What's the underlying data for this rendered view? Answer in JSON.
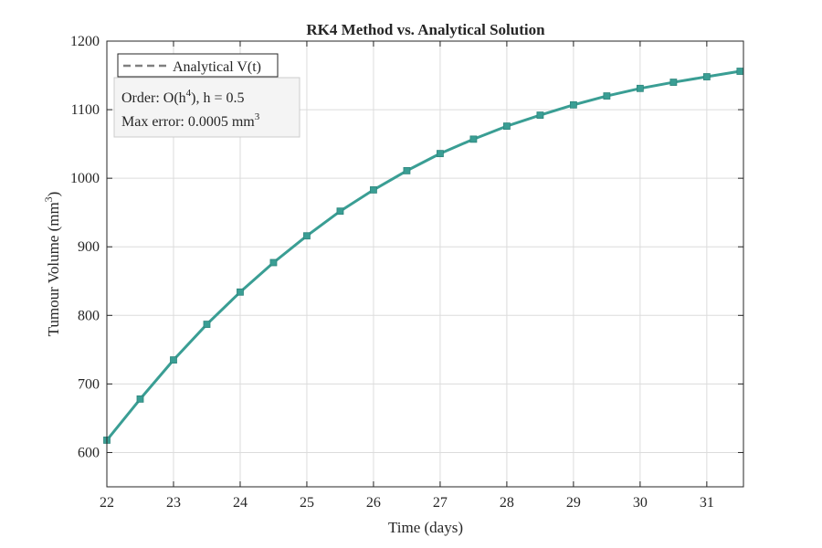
{
  "chart_data": {
    "type": "line",
    "title": "RK4 Method vs. Analytical Solution",
    "xlabel": "Time (days)",
    "ylabel": {
      "main": "Tumour Volume (mm",
      "sup": "3",
      "end": ")"
    },
    "xlim": [
      22,
      31.55
    ],
    "ylim": [
      550,
      1200
    ],
    "xticks": [
      22,
      23,
      24,
      25,
      26,
      27,
      28,
      29,
      30,
      31
    ],
    "yticks": [
      600,
      700,
      800,
      900,
      1000,
      1100,
      1200
    ],
    "grid": true,
    "legend": {
      "placement": "top-left",
      "entries": [
        "Analytical V(t)"
      ]
    },
    "annotation": {
      "order_prefix": "Order: O(h",
      "order_sup": "4",
      "order_suffix": "),  h = 0.5",
      "error_prefix": "Max error: 0.0005 mm",
      "error_sup": "3"
    },
    "colors": {
      "line": "#3a9e94",
      "marker": "#3a9e94",
      "grid": "#dcdcdc",
      "axis": "#262626",
      "analytical": "#808080"
    },
    "series": [
      {
        "name": "Analytical V(t)",
        "style": "dashed",
        "x": [
          22,
          22.5,
          23,
          23.5,
          24,
          24.5,
          25,
          25.5,
          26,
          26.5,
          27,
          27.5,
          28,
          28.5,
          29,
          29.5,
          30,
          30.5,
          31,
          31.5
        ],
        "values": [
          618,
          678,
          735,
          787,
          834,
          877,
          916,
          952,
          983,
          1011,
          1036,
          1057,
          1076,
          1092,
          1107,
          1120,
          1131,
          1140,
          1148,
          1156
        ]
      },
      {
        "style": "solid-markers",
        "x": [
          22,
          22.5,
          23,
          23.5,
          24,
          24.5,
          25,
          25.5,
          26,
          26.5,
          27,
          27.5,
          28,
          28.5,
          29,
          29.5,
          30,
          30.5,
          31,
          31.5
        ],
        "values": [
          618,
          678,
          735,
          787,
          834,
          877,
          916,
          952,
          983,
          1011,
          1036,
          1057,
          1076,
          1092,
          1107,
          1120,
          1131,
          1140,
          1148,
          1156
        ]
      }
    ]
  }
}
